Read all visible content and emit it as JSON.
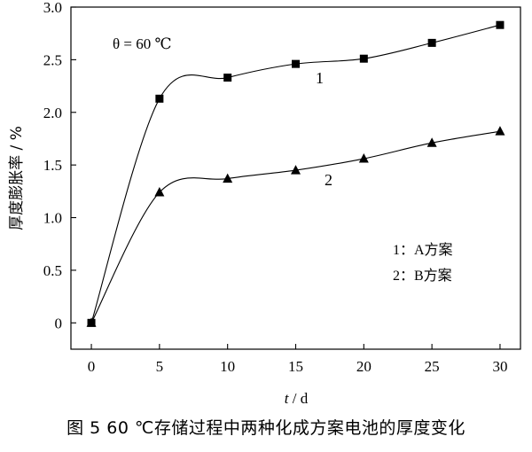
{
  "chart_data": {
    "type": "line",
    "x": [
      0,
      5,
      10,
      15,
      20,
      25,
      30
    ],
    "series": [
      {
        "name": "1",
        "marker": "square",
        "values": [
          0,
          2.13,
          2.33,
          2.46,
          2.51,
          2.66,
          2.83
        ]
      },
      {
        "name": "2",
        "marker": "triangle",
        "values": [
          0,
          1.24,
          1.37,
          1.45,
          1.56,
          1.71,
          1.82
        ]
      }
    ],
    "xlabel_italic": "t",
    "xlabel_unit": " / d",
    "ylabel": "厚度膨胀率 / %",
    "xlim": [
      -1.5,
      31.5
    ],
    "ylim": [
      -0.25,
      3.0
    ],
    "xticks": [
      0,
      5,
      10,
      15,
      20,
      25,
      30
    ],
    "yticks": [
      0,
      0.5,
      1.0,
      1.5,
      2.0,
      2.5,
      3.0
    ],
    "ytick_labels": [
      "0",
      "0.5",
      "1.0",
      "1.5",
      "2.0",
      "2.5",
      "3.0"
    ],
    "annotation_theta": "θ = 60 ℃",
    "legend": [
      "1：A方案",
      "2：B方案"
    ],
    "line_color": "#000000",
    "grid": false
  },
  "caption": "图 5   60 ℃存储过程中两种化成方案电池的厚度变化"
}
